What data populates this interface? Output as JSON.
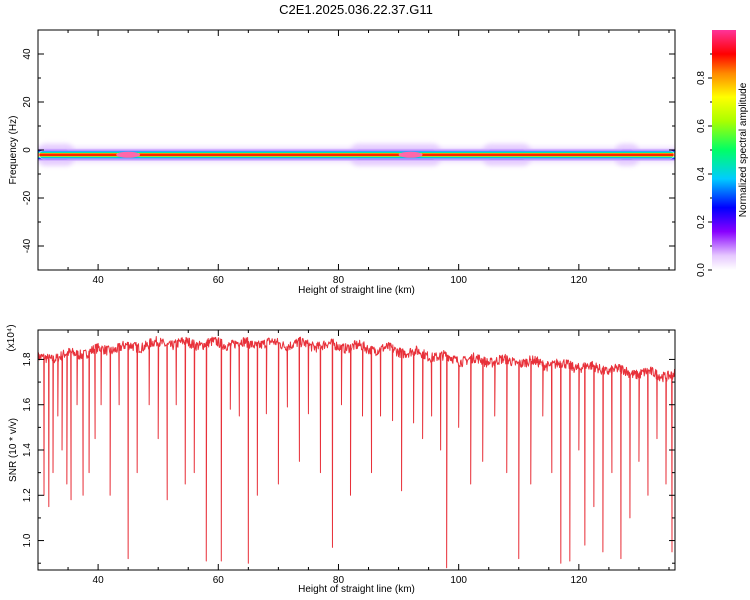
{
  "title": "C2E1.2025.036.22.37.G11",
  "colorbar": {
    "label": "Normalized spectral amplitude",
    "ticks": [
      "0.0",
      "0.2",
      "0.4",
      "0.6",
      "0.8"
    ],
    "tick_values": [
      0.0,
      0.2,
      0.4,
      0.6,
      0.8
    ],
    "range": [
      0,
      1
    ]
  },
  "chart_data": [
    {
      "type": "heatmap",
      "xlabel": "Height of straight line (km)",
      "ylabel": "Frequency (Hz)",
      "xlim": [
        30,
        136
      ],
      "ylim": [
        -50,
        50
      ],
      "x_ticks": [
        40,
        60,
        80,
        100,
        120
      ],
      "y_ticks": [
        -40,
        -20,
        0,
        20,
        40
      ],
      "grid": false,
      "band": {
        "center_freq_hz": -2,
        "core_halfwidth_hz": 1.2,
        "wide_segments_km": [
          [
            30,
            36
          ],
          [
            82,
            97
          ],
          [
            104,
            112
          ],
          [
            126,
            130
          ]
        ],
        "peak_heights_km": [
          45,
          92
        ]
      }
    },
    {
      "type": "line",
      "xlabel": "Height of straight line (km)",
      "ylabel": "SNR (10 * v/v)",
      "y_multiplier": "(x10⁴)",
      "xlim": [
        30,
        136
      ],
      "ylim": [
        0.87,
        1.93
      ],
      "x_ticks": [
        40,
        60,
        80,
        100,
        120
      ],
      "y_ticks": [
        1.0,
        1.2,
        1.4,
        1.6,
        1.8
      ],
      "grid": false,
      "series": [
        {
          "color": "#e8313a",
          "baseline_points": [
            [
              30,
              1.8
            ],
            [
              40,
              1.84
            ],
            [
              50,
              1.87
            ],
            [
              60,
              1.87
            ],
            [
              70,
              1.87
            ],
            [
              80,
              1.86
            ],
            [
              90,
              1.84
            ],
            [
              100,
              1.8
            ],
            [
              110,
              1.79
            ],
            [
              120,
              1.77
            ],
            [
              130,
              1.74
            ],
            [
              136,
              1.73
            ]
          ],
          "dips": [
            [
              31.0,
              1.2
            ],
            [
              31.8,
              1.15
            ],
            [
              32.5,
              1.3
            ],
            [
              33.3,
              1.55
            ],
            [
              34.0,
              1.4
            ],
            [
              34.8,
              1.25
            ],
            [
              35.5,
              1.18
            ],
            [
              36.5,
              1.6
            ],
            [
              37.5,
              1.2
            ],
            [
              38.5,
              1.3
            ],
            [
              39.5,
              1.45
            ],
            [
              40.5,
              1.6
            ],
            [
              42.0,
              1.2
            ],
            [
              43.5,
              1.6
            ],
            [
              45.0,
              0.92
            ],
            [
              46.5,
              1.3
            ],
            [
              48.5,
              1.6
            ],
            [
              50.0,
              1.45
            ],
            [
              51.5,
              1.18
            ],
            [
              53.0,
              1.6
            ],
            [
              54.5,
              1.25
            ],
            [
              56.0,
              1.3
            ],
            [
              58.0,
              0.91
            ],
            [
              60.5,
              0.91
            ],
            [
              62.0,
              1.58
            ],
            [
              63.5,
              1.55
            ],
            [
              65.0,
              0.9
            ],
            [
              66.5,
              1.2
            ],
            [
              68.0,
              1.56
            ],
            [
              70.0,
              1.25
            ],
            [
              71.5,
              1.59
            ],
            [
              73.5,
              1.35
            ],
            [
              75.0,
              1.56
            ],
            [
              77.0,
              1.3
            ],
            [
              79.0,
              0.97
            ],
            [
              80.5,
              1.6
            ],
            [
              82.0,
              1.2
            ],
            [
              84.0,
              1.55
            ],
            [
              85.5,
              1.3
            ],
            [
              87.0,
              1.55
            ],
            [
              89.0,
              1.53
            ],
            [
              90.5,
              1.22
            ],
            [
              92.5,
              1.52
            ],
            [
              94.0,
              1.45
            ],
            [
              95.5,
              1.55
            ],
            [
              97.0,
              1.4
            ],
            [
              98.0,
              0.88
            ],
            [
              100.0,
              1.5
            ],
            [
              102.0,
              1.25
            ],
            [
              104.0,
              1.35
            ],
            [
              106.0,
              1.55
            ],
            [
              108.0,
              1.3
            ],
            [
              110.0,
              0.92
            ],
            [
              112.0,
              1.25
            ],
            [
              114.0,
              1.55
            ],
            [
              115.5,
              1.3
            ],
            [
              117.0,
              0.9
            ],
            [
              118.5,
              0.91
            ],
            [
              120.0,
              1.4
            ],
            [
              121.0,
              0.98
            ],
            [
              122.5,
              1.15
            ],
            [
              124.0,
              0.95
            ],
            [
              125.5,
              1.3
            ],
            [
              127.0,
              0.92
            ],
            [
              128.5,
              1.1
            ],
            [
              130.0,
              1.35
            ],
            [
              131.5,
              1.2
            ],
            [
              133.0,
              1.45
            ],
            [
              134.5,
              1.25
            ],
            [
              135.5,
              0.95
            ]
          ]
        }
      ]
    }
  ]
}
